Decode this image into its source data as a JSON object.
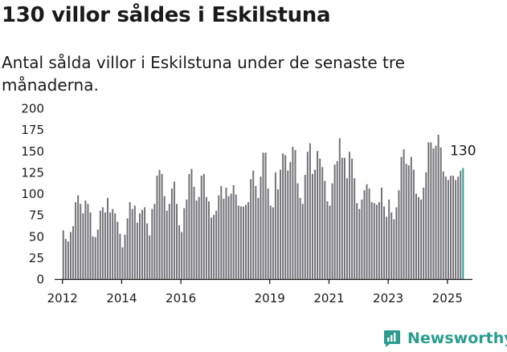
{
  "header": {
    "title": "130 villor såldes i Eskilstuna",
    "subtitle": "Antal sålda villor i Eskilstuna under de senaste tre månaderna."
  },
  "footer": {
    "brand": "Newsworthy"
  },
  "colors": {
    "bar": "#717075",
    "highlight": "#2a9d8f",
    "axis": "#1a1a1a",
    "text": "#1a1a1a"
  },
  "chart_data": {
    "type": "bar",
    "x_tick_labels": [
      "2012",
      "2014",
      "2016",
      "2019",
      "2021",
      "2023",
      "2025"
    ],
    "x_ticks": [
      {
        "label": "2012",
        "year": 2012
      },
      {
        "label": "2014",
        "year": 2014
      },
      {
        "label": "2016",
        "year": 2016
      },
      {
        "label": "2019",
        "year": 2019
      },
      {
        "label": "2021",
        "year": 2021
      },
      {
        "label": "2023",
        "year": 2023
      },
      {
        "label": "2025",
        "year": 2025
      }
    ],
    "y_ticks": [
      0,
      25,
      50,
      75,
      100,
      125,
      150,
      175,
      200
    ],
    "ylim": [
      0,
      200
    ],
    "xlim": [
      "2011-10",
      "2025-10"
    ],
    "grid": false,
    "annotation": {
      "text": "130",
      "month": "2025-07",
      "value": 130
    },
    "series": [
      {
        "months": [
          "2012-01",
          "2012-02",
          "2012-03",
          "2012-04",
          "2012-05",
          "2012-06",
          "2012-07",
          "2012-08",
          "2012-09",
          "2012-10",
          "2012-11",
          "2012-12"
        ],
        "values": [
          57,
          47,
          44,
          55,
          62,
          90,
          98,
          88,
          77,
          92,
          88,
          78
        ]
      },
      {
        "months": [
          "2013-01",
          "2013-02",
          "2013-03",
          "2013-04",
          "2013-05",
          "2013-06",
          "2013-07",
          "2013-08",
          "2013-09",
          "2013-10",
          "2013-11",
          "2013-12"
        ],
        "values": [
          50,
          49,
          58,
          80,
          84,
          78,
          95,
          78,
          82,
          77,
          67,
          53
        ]
      },
      {
        "months": [
          "2014-01",
          "2014-02",
          "2014-03",
          "2014-04",
          "2014-05",
          "2014-06",
          "2014-07",
          "2014-08",
          "2014-09",
          "2014-10",
          "2014-11",
          "2014-12"
        ],
        "values": [
          37,
          52,
          71,
          90,
          82,
          86,
          66,
          77,
          81,
          84,
          65,
          51
        ]
      },
      {
        "months": [
          "2015-01",
          "2015-02",
          "2015-03",
          "2015-04",
          "2015-05",
          "2015-06",
          "2015-07",
          "2015-08",
          "2015-09",
          "2015-10",
          "2015-11",
          "2015-12"
        ],
        "values": [
          82,
          88,
          121,
          128,
          123,
          97,
          80,
          88,
          106,
          114,
          88,
          63
        ]
      },
      {
        "months": [
          "2016-01",
          "2016-02",
          "2016-03",
          "2016-04",
          "2016-05",
          "2016-06",
          "2016-07",
          "2016-08",
          "2016-09",
          "2016-10",
          "2016-11",
          "2016-12"
        ],
        "values": [
          55,
          83,
          93,
          123,
          129,
          108,
          92,
          96,
          121,
          123,
          96,
          91
        ]
      },
      {
        "months": [
          "2017-01",
          "2017-02",
          "2017-03",
          "2017-04",
          "2017-05",
          "2017-06",
          "2017-07",
          "2017-08",
          "2017-09",
          "2017-10",
          "2017-11",
          "2017-12"
        ],
        "values": [
          72,
          75,
          80,
          98,
          109,
          94,
          107,
          97,
          100,
          110,
          99,
          86
        ]
      },
      {
        "months": [
          "2018-01",
          "2018-02",
          "2018-03",
          "2018-04",
          "2018-05",
          "2018-06",
          "2018-07",
          "2018-08",
          "2018-09",
          "2018-10",
          "2018-11",
          "2018-12"
        ],
        "values": [
          85,
          85,
          87,
          90,
          117,
          127,
          109,
          95,
          120,
          148,
          148,
          106
        ]
      },
      {
        "months": [
          "2019-01",
          "2019-02",
          "2019-03",
          "2019-04",
          "2019-05",
          "2019-06",
          "2019-07",
          "2019-08",
          "2019-09",
          "2019-10",
          "2019-11",
          "2019-12"
        ],
        "values": [
          86,
          84,
          125,
          105,
          128,
          147,
          145,
          127,
          137,
          155,
          151,
          112
        ]
      },
      {
        "months": [
          "2020-01",
          "2020-02",
          "2020-03",
          "2020-04",
          "2020-05",
          "2020-06",
          "2020-07",
          "2020-08",
          "2020-09",
          "2020-10",
          "2020-11",
          "2020-12"
        ],
        "values": [
          95,
          88,
          122,
          149,
          159,
          123,
          128,
          150,
          141,
          131,
          115,
          91
        ]
      },
      {
        "months": [
          "2021-01",
          "2021-02",
          "2021-03",
          "2021-04",
          "2021-05",
          "2021-06",
          "2021-07",
          "2021-08",
          "2021-09",
          "2021-10",
          "2021-11",
          "2021-12"
        ],
        "values": [
          86,
          112,
          134,
          138,
          165,
          142,
          142,
          118,
          149,
          141,
          118,
          89
        ]
      },
      {
        "months": [
          "2022-01",
          "2022-02",
          "2022-03",
          "2022-04",
          "2022-05",
          "2022-06",
          "2022-07",
          "2022-08",
          "2022-09",
          "2022-10",
          "2022-11",
          "2022-12"
        ],
        "values": [
          82,
          93,
          104,
          111,
          106,
          90,
          89,
          87,
          90,
          107,
          85,
          73
        ]
      },
      {
        "months": [
          "2023-01",
          "2023-02",
          "2023-03",
          "2023-04",
          "2023-05",
          "2023-06",
          "2023-07",
          "2023-08",
          "2023-09",
          "2023-10",
          "2023-11",
          "2023-12"
        ],
        "values": [
          93,
          78,
          70,
          84,
          104,
          143,
          152,
          135,
          133,
          143,
          128,
          100
        ]
      },
      {
        "months": [
          "2024-01",
          "2024-02",
          "2024-03",
          "2024-04",
          "2024-05",
          "2024-06",
          "2024-07",
          "2024-08",
          "2024-09",
          "2024-10",
          "2024-11",
          "2024-12"
        ],
        "values": [
          96,
          93,
          107,
          125,
          160,
          160,
          153,
          156,
          169,
          154,
          126,
          120
        ]
      },
      {
        "months": [
          "2025-01",
          "2025-02",
          "2025-03",
          "2025-04",
          "2025-05",
          "2025-06",
          "2025-07"
        ],
        "values": [
          116,
          121,
          121,
          116,
          120,
          127,
          130
        ]
      }
    ]
  }
}
